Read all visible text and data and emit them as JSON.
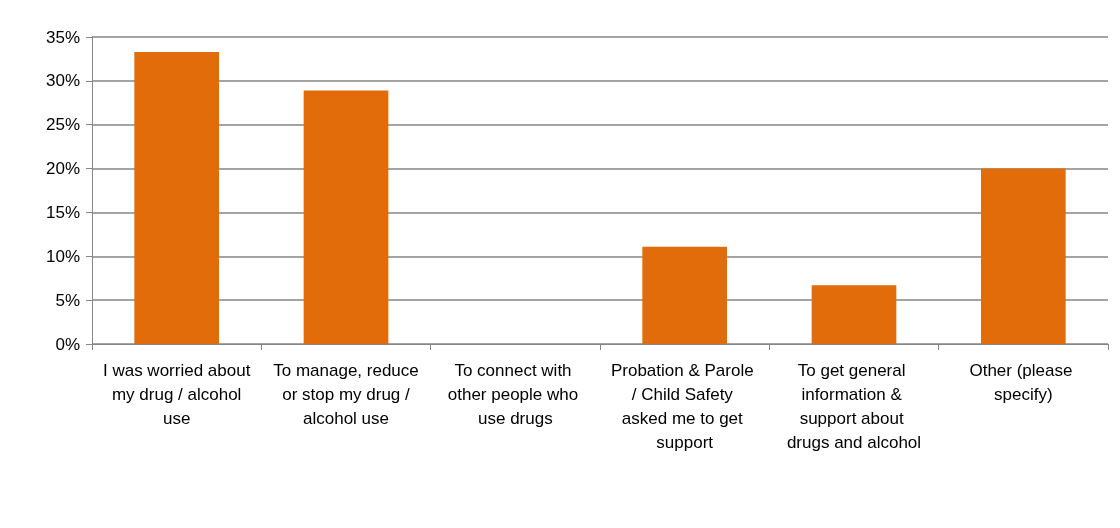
{
  "chart_data": {
    "type": "bar",
    "categories": [
      "I was worried about my drug / alcohol use",
      "To manage, reduce or stop my drug / alcohol use",
      "To connect with other people who use drugs",
      "Probation & Parole / Child Safety asked me to get support",
      "To get general information & support about drugs and alcohol",
      "Other (please specify)"
    ],
    "values": [
      33.3,
      28.9,
      0,
      11.1,
      6.7,
      20.0
    ],
    "color": "#e36c0a",
    "ylim": [
      0,
      35
    ],
    "yticks": [
      {
        "value": 0,
        "label": "0%"
      },
      {
        "value": 5,
        "label": "5%"
      },
      {
        "value": 10,
        "label": "10%"
      },
      {
        "value": 15,
        "label": "15%"
      },
      {
        "value": 20,
        "label": "20%"
      },
      {
        "value": 25,
        "label": "25%"
      },
      {
        "value": 30,
        "label": "30%"
      },
      {
        "value": 35,
        "label": "35%"
      }
    ],
    "grid": "y"
  }
}
